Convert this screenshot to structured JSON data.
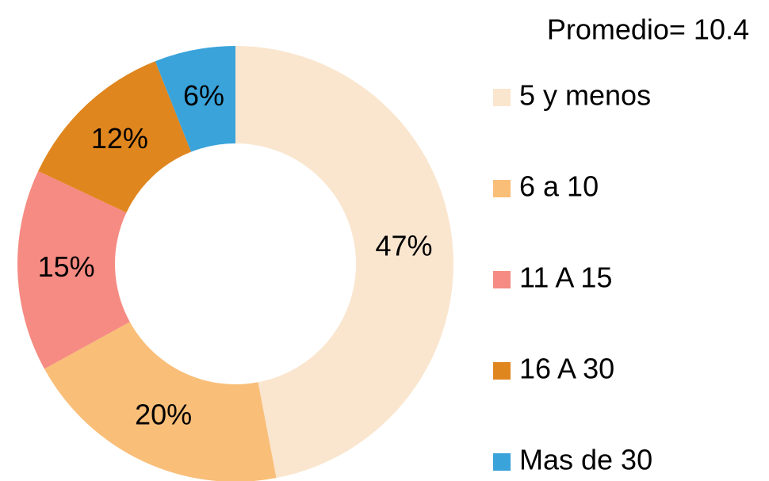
{
  "chart_data": {
    "type": "donut",
    "title": "Promedio= 10.4",
    "categories": [
      "5 y menos",
      "6 a 10",
      "11 A 15",
      "16 A 30",
      "Mas de 30"
    ],
    "values": [
      47,
      20,
      15,
      12,
      6
    ],
    "value_labels": [
      "47%",
      "20%",
      "15%",
      "12%",
      "6%"
    ],
    "colors": [
      "#FAE6CF",
      "#F9BE78",
      "#F58B82",
      "#E0861E",
      "#3AA3DA"
    ]
  }
}
